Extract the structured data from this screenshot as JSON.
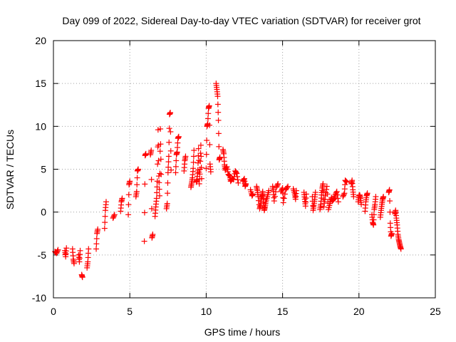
{
  "chart_data": {
    "type": "scatter",
    "title": "Day 099 of 2022, Sidereal Day-to-day VTEC variation (SDTVAR) for receiver grot",
    "xlabel": "GPS time / hours",
    "ylabel": "SDTVAR / TECUs",
    "xlim": [
      0,
      25
    ],
    "ylim": [
      -10,
      20
    ],
    "xticks": [
      0,
      5,
      10,
      15,
      20,
      25
    ],
    "yticks": [
      -10,
      -5,
      0,
      5,
      10,
      15,
      20
    ],
    "grid": true,
    "marker": "plus",
    "color": "#ff0000",
    "series": [
      {
        "name": "SDTVAR",
        "segments": [
          [
            [
              0.1,
              -4.6
            ],
            [
              0.2,
              -4.8
            ],
            [
              0.3,
              -4.4
            ]
          ],
          [
            [
              0.75,
              -4.5
            ],
            [
              0.8,
              -5.2
            ],
            [
              0.85,
              -4.2
            ]
          ],
          [
            [
              1.25,
              -4.3
            ],
            [
              1.3,
              -5.5
            ],
            [
              1.35,
              -6.0
            ]
          ],
          [
            [
              1.65,
              -5.0
            ],
            [
              1.7,
              -5.8
            ],
            [
              1.75,
              -4.5
            ]
          ],
          [
            [
              1.85,
              -7.3
            ],
            [
              1.9,
              -7.6
            ]
          ],
          [
            [
              2.2,
              -6.5
            ],
            [
              2.25,
              -5.8
            ],
            [
              2.3,
              -4.3
            ]
          ],
          [
            [
              2.8,
              -4.3
            ],
            [
              2.85,
              -2.5
            ],
            [
              2.9,
              -2.0
            ]
          ],
          [
            [
              3.35,
              -1.9
            ],
            [
              3.4,
              0.2
            ],
            [
              3.45,
              1.2
            ]
          ],
          [
            [
              3.9,
              -0.7
            ],
            [
              4.0,
              -0.3
            ]
          ],
          [
            [
              4.4,
              0.1
            ],
            [
              4.45,
              1.2
            ],
            [
              4.5,
              1.6
            ]
          ],
          [
            [
              4.9,
              -0.3
            ],
            [
              4.95,
              3.2
            ],
            [
              5.0,
              3.6
            ]
          ],
          [
            [
              5.4,
              1.8
            ],
            [
              5.45,
              2.4
            ],
            [
              5.5,
              4.8
            ],
            [
              5.55,
              5.0
            ]
          ],
          [
            [
              5.95,
              -3.4
            ],
            [
              6.0,
              6.6
            ],
            [
              6.05,
              6.8
            ]
          ],
          [
            [
              6.35,
              6.7
            ],
            [
              6.4,
              7.2
            ],
            [
              6.45,
              -3.0
            ],
            [
              6.5,
              -2.6
            ]
          ],
          [
            [
              6.65,
              -0.5
            ],
            [
              6.7,
              0.6
            ],
            [
              6.75,
              1.6
            ],
            [
              6.8,
              3.6
            ],
            [
              6.85,
              9.6
            ],
            [
              6.9,
              4.2
            ],
            [
              6.95,
              1.9
            ],
            [
              7.0,
              9.7
            ],
            [
              7.05,
              4.4
            ]
          ],
          [
            [
              7.4,
              0.4
            ],
            [
              7.45,
              1.0
            ],
            [
              7.5,
              4.6
            ],
            [
              7.55,
              6.5
            ],
            [
              7.6,
              11.4
            ],
            [
              7.65,
              11.6
            ],
            [
              7.7,
              4.9
            ]
          ],
          [
            [
              8.0,
              4.6
            ],
            [
              8.05,
              6.7
            ],
            [
              8.1,
              7.0
            ],
            [
              8.15,
              8.6
            ],
            [
              8.2,
              8.8
            ]
          ],
          [
            [
              8.55,
              4.8
            ],
            [
              8.6,
              6.0
            ],
            [
              8.65,
              6.5
            ]
          ],
          [
            [
              9.0,
              2.9
            ],
            [
              9.05,
              3.4
            ],
            [
              9.1,
              4.0
            ],
            [
              9.15,
              5.1
            ],
            [
              9.2,
              7.2
            ]
          ],
          [
            [
              9.35,
              3.5
            ],
            [
              9.4,
              3.8
            ],
            [
              9.45,
              4.9
            ],
            [
              9.5,
              7.4
            ],
            [
              9.55,
              3.3
            ],
            [
              9.6,
              5.0
            ],
            [
              9.65,
              7.8
            ],
            [
              9.7,
              3.9
            ]
          ],
          [
            [
              10.0,
              5.1
            ],
            [
              10.05,
              10.0
            ],
            [
              10.1,
              10.3
            ],
            [
              10.15,
              12.1
            ],
            [
              10.2,
              12.4
            ],
            [
              10.25,
              5.6
            ],
            [
              10.3,
              4.7
            ]
          ],
          [
            [
              10.65,
              15.0
            ],
            [
              10.7,
              14.3
            ],
            [
              10.75,
              13.5
            ],
            [
              10.8,
              10.7
            ],
            [
              10.85,
              6.1
            ],
            [
              10.9,
              6.4
            ]
          ],
          [
            [
              11.1,
              7.3
            ],
            [
              11.15,
              6.8
            ],
            [
              11.2,
              5.5
            ],
            [
              11.25,
              4.9
            ],
            [
              11.35,
              5.3
            ],
            [
              11.45,
              4.4
            ],
            [
              11.55,
              4.2
            ],
            [
              11.6,
              3.6
            ],
            [
              11.7,
              3.9
            ],
            [
              11.8,
              3.8
            ],
            [
              11.9,
              4.8
            ],
            [
              12.0,
              4.5
            ],
            [
              12.1,
              3.4
            ]
          ],
          [
            [
              12.4,
              3.6
            ],
            [
              12.5,
              3.9
            ],
            [
              12.55,
              3.0
            ],
            [
              12.6,
              3.3
            ]
          ],
          [
            [
              12.9,
              2.6
            ],
            [
              13.0,
              1.9
            ],
            [
              13.05,
              2.1
            ]
          ],
          [
            [
              13.3,
              3.0
            ],
            [
              13.35,
              2.5
            ],
            [
              13.4,
              1.8
            ],
            [
              13.5,
              0.4
            ],
            [
              13.55,
              0.8
            ],
            [
              13.6,
              1.5
            ],
            [
              13.65,
              1.9
            ],
            [
              13.7,
              2.4
            ],
            [
              13.75,
              1.1
            ],
            [
              13.8,
              0.2
            ],
            [
              13.85,
              0.6
            ],
            [
              13.9,
              1.2
            ],
            [
              14.0,
              1.8
            ],
            [
              14.1,
              2.5
            ]
          ],
          [
            [
              14.35,
              3.0
            ],
            [
              14.4,
              2.4
            ],
            [
              14.45,
              1.3
            ],
            [
              14.6,
              2.9
            ],
            [
              14.7,
              3.3
            ]
          ],
          [
            [
              14.9,
              2.4
            ],
            [
              15.0,
              2.8
            ],
            [
              15.05,
              1.1
            ],
            [
              15.2,
              2.6
            ],
            [
              15.35,
              3.0
            ]
          ],
          [
            [
              15.7,
              2.7
            ],
            [
              15.8,
              2.1
            ],
            [
              15.85,
              1.5
            ],
            [
              15.9,
              2.5
            ]
          ],
          [
            [
              16.4,
              2.3
            ],
            [
              16.45,
              1.5
            ],
            [
              16.5,
              0.7
            ],
            [
              16.55,
              2.1
            ]
          ],
          [
            [
              16.95,
              1.8
            ],
            [
              17.0,
              0.2
            ],
            [
              17.05,
              0.8
            ],
            [
              17.1,
              1.5
            ],
            [
              17.15,
              2.3
            ]
          ],
          [
            [
              17.45,
              0.3
            ],
            [
              17.5,
              0.9
            ],
            [
              17.55,
              2.0
            ],
            [
              17.6,
              2.8
            ],
            [
              17.65,
              3.3
            ],
            [
              17.7,
              0.6
            ],
            [
              17.8,
              1.9
            ],
            [
              17.9,
              3.0
            ],
            [
              18.0,
              0.3
            ],
            [
              18.1,
              1.0
            ],
            [
              18.2,
              1.7
            ],
            [
              18.25,
              1.3
            ],
            [
              18.35,
              1.5
            ],
            [
              18.45,
              2.0
            ],
            [
              18.55,
              2.4
            ],
            [
              18.65,
              1.2
            ]
          ],
          [
            [
              18.95,
              1.8
            ],
            [
              19.05,
              2.2
            ],
            [
              19.1,
              3.7
            ],
            [
              19.2,
              3.5
            ]
          ],
          [
            [
              19.5,
              3.3
            ],
            [
              19.55,
              3.7
            ],
            [
              19.6,
              2.6
            ],
            [
              19.65,
              1.8
            ]
          ],
          [
            [
              19.95,
              1.2
            ],
            [
              20.0,
              1.9
            ],
            [
              20.05,
              2.0
            ],
            [
              20.1,
              1.6
            ],
            [
              20.15,
              0.9
            ]
          ],
          [
            [
              20.4,
              0.1
            ],
            [
              20.45,
              1.2
            ],
            [
              20.5,
              1.9
            ],
            [
              20.55,
              2.2
            ]
          ],
          [
            [
              20.85,
              -0.3
            ],
            [
              20.9,
              -1.2
            ],
            [
              20.95,
              -1.5
            ],
            [
              21.0,
              0.3
            ],
            [
              21.05,
              0.9
            ],
            [
              21.1,
              1.8
            ]
          ],
          [
            [
              21.4,
              -0.6
            ],
            [
              21.45,
              0.2
            ],
            [
              21.5,
              0.9
            ],
            [
              21.55,
              1.5
            ],
            [
              21.6,
              1.8
            ]
          ],
          [
            [
              21.95,
              2.3
            ],
            [
              22.0,
              2.6
            ],
            [
              22.05,
              -1.3
            ],
            [
              22.1,
              -2.8
            ],
            [
              22.15,
              -2.5
            ]
          ],
          [
            [
              22.35,
              -0.2
            ],
            [
              22.4,
              0.2
            ],
            [
              22.45,
              -0.7
            ],
            [
              22.5,
              -1.5
            ],
            [
              22.55,
              -2.6
            ],
            [
              22.6,
              -3.2
            ],
            [
              22.65,
              -3.6
            ],
            [
              22.7,
              -4.0
            ],
            [
              22.75,
              -4.3
            ]
          ]
        ]
      }
    ]
  }
}
